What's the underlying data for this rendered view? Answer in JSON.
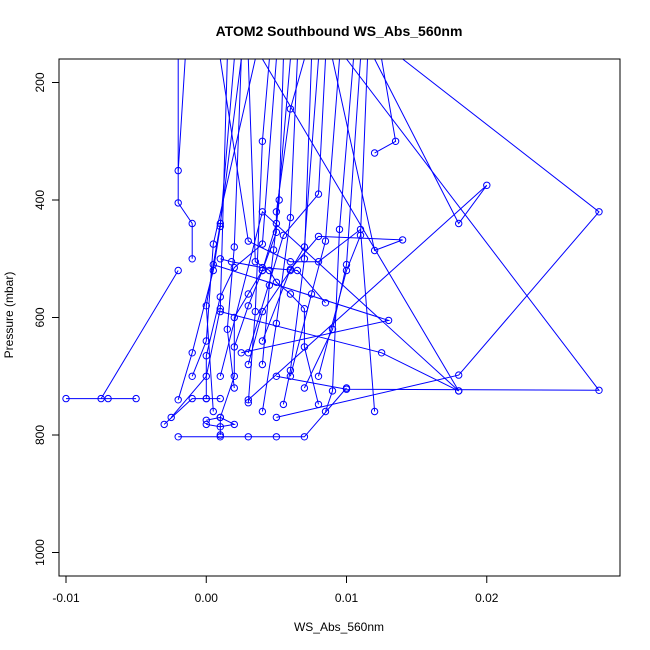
{
  "chart_data": {
    "type": "line",
    "title": "ATOM2 Southbound WS_Abs_560nm",
    "xlabel": "WS_Abs_560nm",
    "ylabel": "Pressure (mbar)",
    "xlim": [
      -0.0105,
      0.0295
    ],
    "ylim": [
      1040,
      160
    ],
    "y_axis_inverted": true,
    "x_ticks": [
      -0.01,
      0.0,
      0.01,
      0.02
    ],
    "x_tick_labels": [
      "-0.01",
      "0.00",
      "0.01",
      "0.02"
    ],
    "y_ticks": [
      200,
      400,
      600,
      800,
      1000
    ],
    "y_tick_labels": [
      "200",
      "400",
      "600",
      "800",
      "1000"
    ],
    "grid": false,
    "legend": "none",
    "color": "#0000ff",
    "marker": "open-circle",
    "series": [
      {
        "x": [
          0.007,
          0.006,
          0.005,
          0.005,
          0.004,
          0.003,
          0.002,
          0.002,
          0.001,
          0.001
        ],
        "y": [
          160,
          245,
          420,
          455,
          520,
          560,
          600,
          700,
          770,
          800
        ]
      },
      {
        "x": [
          -0.002,
          -0.002,
          -0.001,
          -0.001
        ],
        "y": [
          160,
          405,
          440,
          500
        ]
      },
      {
        "x": [
          -0.002,
          -0.0075,
          -0.007,
          -0.005,
          -0.01
        ],
        "y": [
          520,
          738,
          738,
          738,
          738
        ]
      },
      {
        "x": [
          -0.003,
          -0.001,
          0.0,
          0.001
        ],
        "y": [
          782,
          738,
          738,
          738
        ]
      },
      {
        "x": [
          -0.002,
          0.001,
          0.003,
          0.005,
          0.007,
          0.01
        ],
        "y": [
          803,
          803,
          803,
          803,
          803,
          720
        ]
      },
      {
        "x": [
          0.0,
          0.001,
          0.002,
          0.001,
          0.0
        ],
        "y": [
          775,
          770,
          782,
          786,
          782
        ]
      },
      {
        "x": [
          0.001,
          0.003,
          0.006,
          0.008,
          0.011,
          0.012
        ],
        "y": [
          160,
          470,
          505,
          505,
          450,
          760
        ]
      },
      {
        "x": [
          0.012,
          0.018,
          0.02,
          0.003
        ],
        "y": [
          160,
          440,
          375,
          740
        ]
      },
      {
        "x": [
          0.014,
          0.028,
          0.018,
          0.005
        ],
        "y": [
          160,
          420,
          698,
          770
        ]
      },
      {
        "x": [
          0.01,
          0.028,
          0.01,
          0.005
        ],
        "y": [
          160,
          724,
          722,
          700
        ]
      },
      {
        "x": [
          0.004,
          0.018,
          0.004,
          0.001
        ],
        "y": [
          160,
          725,
          420,
          700
        ]
      },
      {
        "x": [
          0.009,
          0.012,
          0.014,
          0.008,
          0.006,
          0.004
        ],
        "y": [
          160,
          486,
          468,
          462,
          518,
          640
        ]
      },
      {
        "x": [
          0.003,
          0.0035,
          0.0045,
          0.005,
          0.006,
          0.007,
          0.007,
          0.008
        ],
        "y": [
          160,
          505,
          520,
          540,
          560,
          585,
          650,
          748
        ]
      },
      {
        "x": [
          0.005,
          0.004,
          0.002,
          0.001,
          0.0,
          0.0
        ],
        "y": [
          160,
          475,
          515,
          565,
          665,
          738
        ]
      },
      {
        "x": [
          0.006,
          0.005,
          0.004,
          0.003,
          0.002
        ],
        "y": [
          160,
          440,
          520,
          580,
          650
        ]
      },
      {
        "x": [
          0.002,
          0.001,
          0.0005,
          -0.001,
          -0.002
        ],
        "y": [
          160,
          445,
          520,
          660,
          740
        ]
      },
      {
        "x": [
          0.0015,
          0.001,
          0.0,
          -0.0025
        ],
        "y": [
          160,
          585,
          700,
          770
        ]
      },
      {
        "x": [
          0.008,
          0.007,
          0.006,
          0.004,
          0.003
        ],
        "y": [
          160,
          480,
          520,
          590,
          680
        ]
      },
      {
        "x": [
          0.011,
          0.01,
          0.009,
          0.007
        ],
        "y": [
          160,
          510,
          620,
          720
        ]
      },
      {
        "x": [
          0.0045,
          0.004,
          0.0035,
          0.003
        ],
        "y": [
          160,
          300,
          590,
          745
        ]
      },
      {
        "x": [
          0.0055,
          0.0052,
          0.0048,
          0.0045,
          0.004
        ],
        "y": [
          160,
          400,
          485,
          545,
          680
        ]
      },
      {
        "x": [
          0.0065,
          0.006,
          0.005,
          0.004
        ],
        "y": [
          160,
          430,
          610,
          760
        ]
      },
      {
        "x": [
          0.0105,
          0.0095,
          0.009,
          0.0085
        ],
        "y": [
          160,
          450,
          725,
          760
        ]
      },
      {
        "x": [
          0.0115,
          0.011,
          0.01,
          0.008
        ],
        "y": [
          160,
          460,
          520,
          700
        ]
      },
      {
        "x": [
          0.0035,
          0.0005,
          0.0,
          -0.001
        ],
        "y": [
          160,
          475,
          640,
          700
        ]
      },
      {
        "x": [
          0.0025,
          0.001,
          0.0,
          0.0005
        ],
        "y": [
          160,
          440,
          580,
          760
        ]
      },
      {
        "x": [
          0.0085,
          0.008,
          0.0055,
          0.003
        ],
        "y": [
          160,
          390,
          460,
          660
        ]
      },
      {
        "x": [
          0.0075,
          0.007,
          0.006,
          0.0055
        ],
        "y": [
          160,
          500,
          690,
          748
        ]
      },
      {
        "x": [
          0.0095,
          0.0085,
          0.0075,
          0.006
        ],
        "y": [
          160,
          470,
          560,
          700
        ]
      },
      {
        "x": [
          0.0025,
          0.002,
          0.0015,
          0.002
        ],
        "y": [
          160,
          480,
          620,
          720
        ]
      },
      {
        "x": [
          0.0125,
          0.0135,
          0.012
        ],
        "y": [
          160,
          300,
          320
        ]
      },
      {
        "x": [
          0.001,
          0.0125,
          0.018
        ],
        "y": [
          590,
          660,
          725
        ]
      },
      {
        "x": [
          0.001,
          0.0018,
          0.004,
          0.0065,
          0.0085
        ],
        "y": [
          500,
          505,
          515,
          520,
          575
        ]
      },
      {
        "x": [
          0.0005,
          0.013,
          0.0025
        ],
        "y": [
          510,
          605,
          660
        ]
      },
      {
        "x": [
          -0.0015,
          -0.002
        ],
        "y": [
          160,
          350
        ]
      }
    ]
  }
}
